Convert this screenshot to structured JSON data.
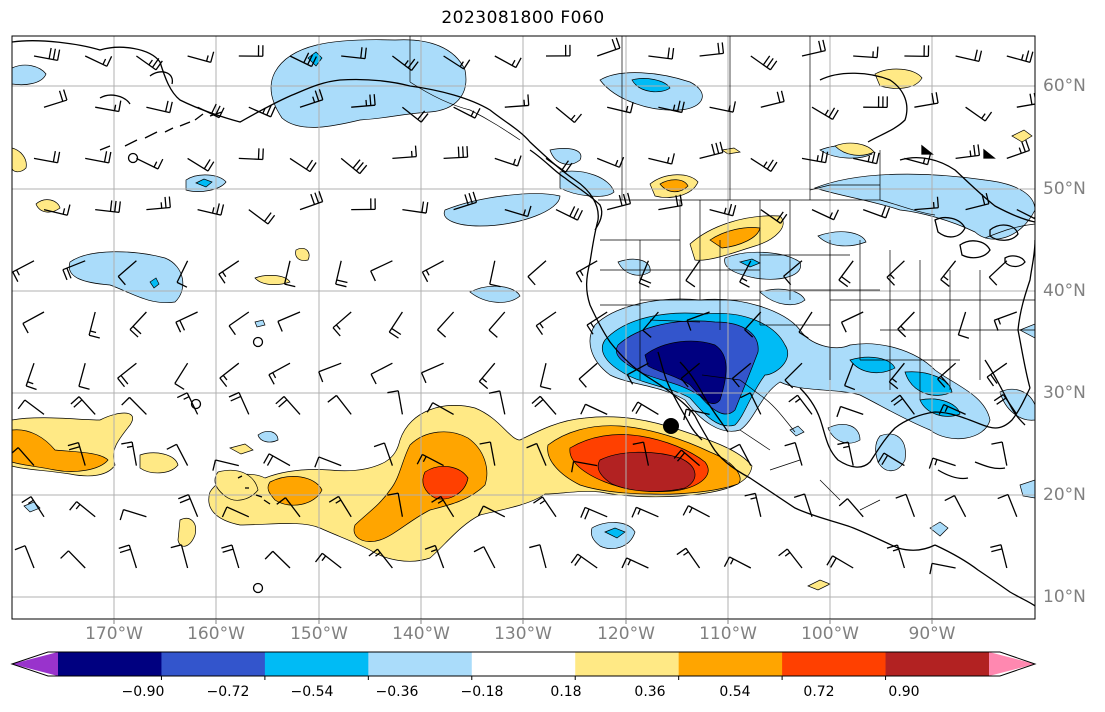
{
  "title": "2023081800 F060",
  "lat_labels": [
    "60°N",
    "50°N",
    "40°N",
    "30°N",
    "20°N",
    "10°N"
  ],
  "lon_labels": [
    "170°W",
    "160°W",
    "150°W",
    "140°W",
    "130°W",
    "120°W",
    "110°W",
    "100°W",
    "90°W"
  ],
  "colorbar": {
    "labels": [
      "−0.90",
      "−0.72",
      "−0.54",
      "−0.36",
      "−0.18",
      "0.18",
      "0.36",
      "0.54",
      "0.72",
      "0.90"
    ],
    "colors": [
      "#9933cc",
      "#000080",
      "#3355cc",
      "#00bbf5",
      "#aadcfa",
      "#ffffff",
      "#ffe985",
      "#ffa500",
      "#ff4000",
      "#b22222",
      "#ff88b0"
    ]
  },
  "colors": {
    "contour_line": "#000000",
    "grid": "#b0b0b0",
    "axis_label": "#808080"
  }
}
